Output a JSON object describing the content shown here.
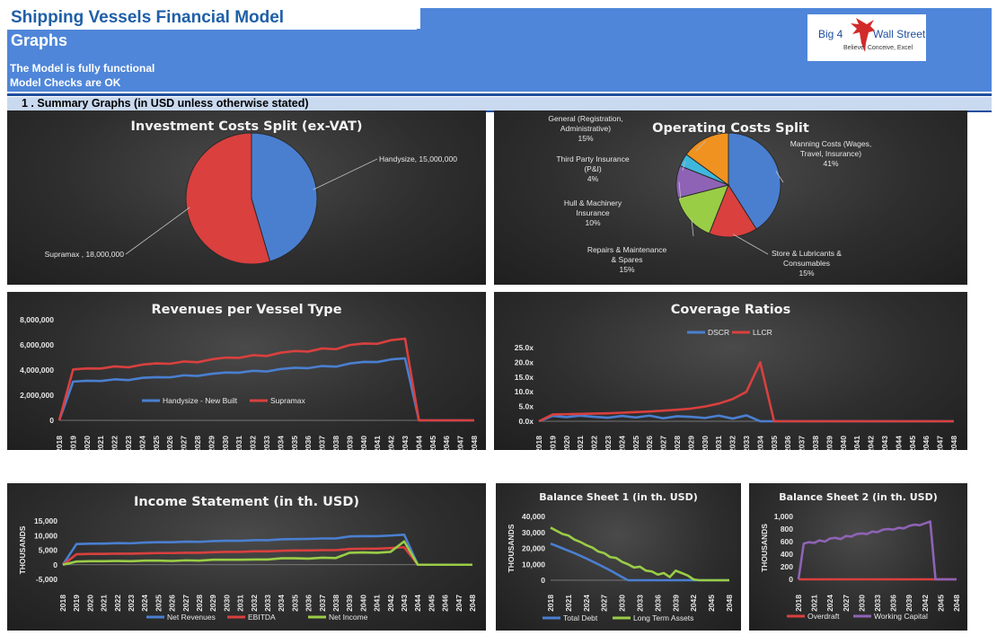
{
  "header": {
    "title": "Shipping Vessels Financial Model",
    "subtitle": "Graphs",
    "status_line1": "The Model is fully functional",
    "status_line2": "Model Checks are OK",
    "logo": {
      "text_left": "Big 4",
      "text_right": "Wall Street",
      "tagline": "Believe, Conceive, Excel"
    }
  },
  "section": {
    "label": "1 . Summary Graphs (in USD unless otherwise stated)"
  },
  "colors": {
    "blue": "#4f86d9",
    "dark_blue": "#1f4e9c",
    "series_blue": "#4a7fd0",
    "series_red": "#d9403e",
    "series_green": "#9acd46",
    "series_purple": "#8e63b5",
    "series_cyan": "#3fb7dd",
    "series_orange": "#f0921f"
  },
  "chart_data": [
    {
      "id": "investment",
      "type": "pie",
      "title": "Investment Costs Split (ex-VAT)",
      "labels": [
        "Handysize",
        "Supramax"
      ],
      "values": [
        15000000,
        18000000
      ],
      "display_labels": [
        "Handysize, 15,000,000",
        "Supramax , 18,000,000"
      ]
    },
    {
      "id": "opex",
      "type": "pie",
      "title": "Operating Costs Split",
      "labels": [
        "Manning Costs (Wages, Travel, Insurance)",
        "Store & Lubricants & Consumables",
        "Repairs & Maintenance & Spares",
        "Hull & Machinery Insurance",
        "Third Party Insurance (P&I)",
        "General (Registration, Administrative)"
      ],
      "values": [
        41,
        15,
        15,
        10,
        4,
        15
      ],
      "display_lines": [
        [
          "Manning Costs (Wages,",
          "Travel, Insurance)",
          "41%"
        ],
        [
          "Store & Lubricants &",
          "Consumables",
          "15%"
        ],
        [
          "Repairs & Maintenance",
          "& Spares",
          "15%"
        ],
        [
          "Hull & Machinery",
          "Insurance",
          "10%"
        ],
        [
          "Third Party Insurance",
          "(P&I)",
          "4%"
        ],
        [
          "General (Registration,",
          "Administrative)",
          "15%"
        ]
      ]
    },
    {
      "id": "revenues",
      "type": "line",
      "title": "Revenues per Vessel Type",
      "x": [
        2018,
        2019,
        2020,
        2021,
        2022,
        2023,
        2024,
        2025,
        2026,
        2027,
        2028,
        2029,
        2030,
        2031,
        2032,
        2033,
        2034,
        2035,
        2036,
        2037,
        2038,
        2039,
        2040,
        2041,
        2042,
        2043,
        2044,
        2045,
        2046,
        2047,
        2048
      ],
      "yticks": [
        "8,000,000",
        "6,000,000",
        "4,000,000",
        "2,000,000",
        "0"
      ],
      "ylim": [
        0,
        8000000
      ],
      "series": [
        {
          "name": "Handysize - New Built",
          "values": [
            0,
            3080000,
            3150000,
            3130000,
            3260000,
            3200000,
            3380000,
            3430000,
            3420000,
            3580000,
            3530000,
            3700000,
            3800000,
            3790000,
            3940000,
            3890000,
            4080000,
            4180000,
            4150000,
            4320000,
            4270000,
            4520000,
            4650000,
            4640000,
            4850000,
            4930000,
            0,
            0,
            0,
            0,
            0
          ]
        },
        {
          "name": "Supramax",
          "values": [
            0,
            4050000,
            4130000,
            4120000,
            4290000,
            4220000,
            4430000,
            4530000,
            4500000,
            4680000,
            4620000,
            4850000,
            4990000,
            4970000,
            5180000,
            5120000,
            5380000,
            5510000,
            5470000,
            5720000,
            5660000,
            5990000,
            6110000,
            6090000,
            6380000,
            6500000,
            0,
            0,
            0,
            0,
            0
          ]
        }
      ],
      "legend": "inside-bottom"
    },
    {
      "id": "coverage",
      "type": "line",
      "title": "Coverage Ratios",
      "x": [
        2018,
        2019,
        2020,
        2021,
        2022,
        2023,
        2024,
        2025,
        2026,
        2027,
        2028,
        2029,
        2030,
        2031,
        2032,
        2033,
        2034,
        2035,
        2036,
        2037,
        2038,
        2039,
        2040,
        2041,
        2042,
        2043,
        2044,
        2045,
        2046,
        2047,
        2048
      ],
      "yticks": [
        "25.0x",
        "20.0x",
        "15.0x",
        "10.0x",
        "5.0x",
        "0.0x"
      ],
      "ylim": [
        0,
        25
      ],
      "series": [
        {
          "name": "DSCR",
          "values": [
            0,
            1.8,
            1.4,
            1.9,
            1.5,
            1.2,
            1.8,
            1.3,
            1.9,
            1.0,
            1.7,
            1.5,
            1.1,
            1.9,
            0.9,
            2.0,
            0,
            0,
            0,
            0,
            0,
            0,
            0,
            0,
            0,
            0,
            0,
            0,
            0,
            0,
            0
          ]
        },
        {
          "name": "LLCR",
          "values": [
            0,
            2.3,
            2.4,
            2.5,
            2.6,
            2.7,
            2.9,
            3.1,
            3.3,
            3.6,
            3.9,
            4.3,
            5.0,
            6.0,
            7.5,
            10.0,
            20.0,
            0,
            0,
            0,
            0,
            0,
            0,
            0,
            0,
            0,
            0,
            0,
            0,
            0,
            0
          ]
        }
      ],
      "legend": "top"
    },
    {
      "id": "income",
      "type": "line",
      "title": "Income Statement (in th. USD)",
      "ylabel": "THOUSANDS",
      "x": [
        2018,
        2019,
        2020,
        2021,
        2022,
        2023,
        2024,
        2025,
        2026,
        2027,
        2028,
        2029,
        2030,
        2031,
        2032,
        2033,
        2034,
        2035,
        2036,
        2037,
        2038,
        2039,
        2040,
        2041,
        2042,
        2043,
        2044,
        2045,
        2046,
        2047,
        2048
      ],
      "yticks": [
        "15,000",
        "10,000",
        "5,000",
        "0",
        "-5,000"
      ],
      "ylim": [
        -5000,
        15000
      ],
      "series": [
        {
          "name": "Net Revenues",
          "values": [
            0,
            7100,
            7200,
            7250,
            7400,
            7350,
            7600,
            7700,
            7700,
            7900,
            7850,
            8100,
            8200,
            8200,
            8400,
            8400,
            8700,
            8800,
            8850,
            9000,
            9000,
            9700,
            9800,
            9800,
            10000,
            10300,
            0,
            0,
            0,
            0,
            0
          ]
        },
        {
          "name": "EBITDA",
          "values": [
            0,
            3600,
            3700,
            3700,
            3800,
            3800,
            3900,
            4000,
            4000,
            4100,
            4100,
            4300,
            4400,
            4400,
            4600,
            4600,
            4800,
            4900,
            4900,
            5000,
            5000,
            5400,
            5500,
            5500,
            5700,
            6000,
            0,
            0,
            0,
            0,
            0
          ]
        },
        {
          "name": "Net Income",
          "values": [
            0,
            1100,
            1200,
            1200,
            1300,
            1200,
            1400,
            1400,
            1300,
            1500,
            1400,
            1700,
            1700,
            1700,
            1800,
            1800,
            2200,
            2200,
            2100,
            2400,
            2300,
            4100,
            4200,
            4100,
            4400,
            8000,
            0,
            0,
            0,
            0,
            0
          ]
        }
      ],
      "legend": "bottom"
    },
    {
      "id": "balance1",
      "type": "line",
      "title": "Balance Sheet 1 (in th. USD)",
      "ylabel": "THOUSANDS",
      "xticks": [
        "2018",
        "2021",
        "2024",
        "2027",
        "2030",
        "2033",
        "2036",
        "2039",
        "2042",
        "2045",
        "2048"
      ],
      "yticks": [
        "40,000",
        "30,000",
        "20,000",
        "10,000",
        "0"
      ],
      "ylim": [
        0,
        40000
      ],
      "x": [
        2018,
        2019,
        2020,
        2021,
        2022,
        2023,
        2024,
        2025,
        2026,
        2027,
        2028,
        2029,
        2030,
        2031,
        2032,
        2033,
        2034,
        2035,
        2036,
        2037,
        2038,
        2039,
        2040,
        2041,
        2042,
        2043,
        2044,
        2045,
        2046,
        2047,
        2048
      ],
      "series": [
        {
          "name": "Total Debt",
          "values": [
            23000,
            21500,
            20000,
            18500,
            17000,
            15300,
            13600,
            11800,
            10000,
            8100,
            6200,
            4100,
            2000,
            0,
            0,
            0,
            0,
            0,
            0,
            0,
            0,
            0,
            0,
            0,
            0,
            0,
            0,
            0,
            0,
            0,
            0
          ]
        },
        {
          "name": "Long Term Assets",
          "values": [
            33000,
            31000,
            29000,
            28000,
            25500,
            24000,
            22000,
            20500,
            18000,
            17000,
            14500,
            14000,
            11500,
            10000,
            8000,
            8500,
            6000,
            5500,
            3500,
            4500,
            2000,
            6000,
            4500,
            3000,
            500,
            0,
            0,
            0,
            0,
            0,
            0
          ]
        }
      ],
      "legend": "bottom"
    },
    {
      "id": "balance2",
      "type": "line",
      "title": "Balance Sheet 2 (in th. USD)",
      "ylabel": "THOUSANDS",
      "xticks": [
        "2018",
        "2021",
        "2024",
        "2027",
        "2030",
        "2033",
        "2036",
        "2039",
        "2042",
        "2045",
        "2048"
      ],
      "yticks": [
        "1,000",
        "800",
        "600",
        "400",
        "200",
        "0"
      ],
      "ylim": [
        0,
        1000
      ],
      "x": [
        2018,
        2019,
        2020,
        2021,
        2022,
        2023,
        2024,
        2025,
        2026,
        2027,
        2028,
        2029,
        2030,
        2031,
        2032,
        2033,
        2034,
        2035,
        2036,
        2037,
        2038,
        2039,
        2040,
        2041,
        2042,
        2043,
        2044,
        2045,
        2046,
        2047,
        2048
      ],
      "series": [
        {
          "name": "Overdraft",
          "values": [
            0,
            0,
            0,
            0,
            0,
            0,
            0,
            0,
            0,
            0,
            0,
            0,
            0,
            0,
            0,
            0,
            0,
            0,
            0,
            0,
            0,
            0,
            0,
            0,
            0,
            0,
            0,
            0,
            0,
            0,
            0
          ]
        },
        {
          "name": "Working Capital",
          "values": [
            0,
            570,
            590,
            580,
            620,
            600,
            650,
            660,
            640,
            690,
            680,
            720,
            730,
            720,
            760,
            750,
            790,
            800,
            790,
            820,
            810,
            850,
            870,
            860,
            890,
            920,
            0,
            0,
            0,
            0,
            0
          ]
        }
      ],
      "legend": "bottom"
    }
  ]
}
